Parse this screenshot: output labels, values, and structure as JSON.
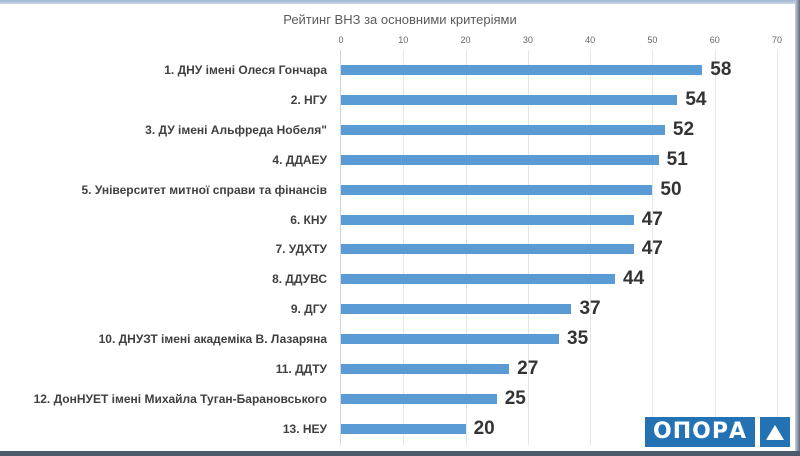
{
  "chart_data": {
    "type": "bar",
    "orientation": "horizontal",
    "title": "Рейтинг ВНЗ за основними критеріями",
    "xlabel": "",
    "ylabel": "",
    "xlim": [
      0,
      70
    ],
    "x_ticks": [
      "0",
      "10",
      "20",
      "30",
      "40",
      "50",
      "60",
      "70"
    ],
    "grid": true,
    "legend": null,
    "categories": [
      "1. ДНУ імені Олеся Гончара",
      "2. НГУ",
      "3. ДУ імені Альфреда Нобеля\"",
      "4. ДДАЕУ",
      "5. Університет митної справи та фінансів",
      "6. КНУ",
      "7. УДХТУ",
      "8. ДДУВС",
      "9. ДГУ",
      "10. ДНУЗТ імені академіка В. Лазаряна",
      "11. ДДТУ",
      "12. ДонНУЕТ імені Михайла Туган-Барановського",
      "13. НЕУ"
    ],
    "values": [
      58,
      54,
      52,
      51,
      50,
      47,
      47,
      44,
      37,
      35,
      27,
      25,
      20
    ],
    "bar_color": "#5b9bd5"
  },
  "logo": {
    "text": "ОПОРА",
    "icon": "triangle-icon",
    "color": "#2272b4"
  }
}
